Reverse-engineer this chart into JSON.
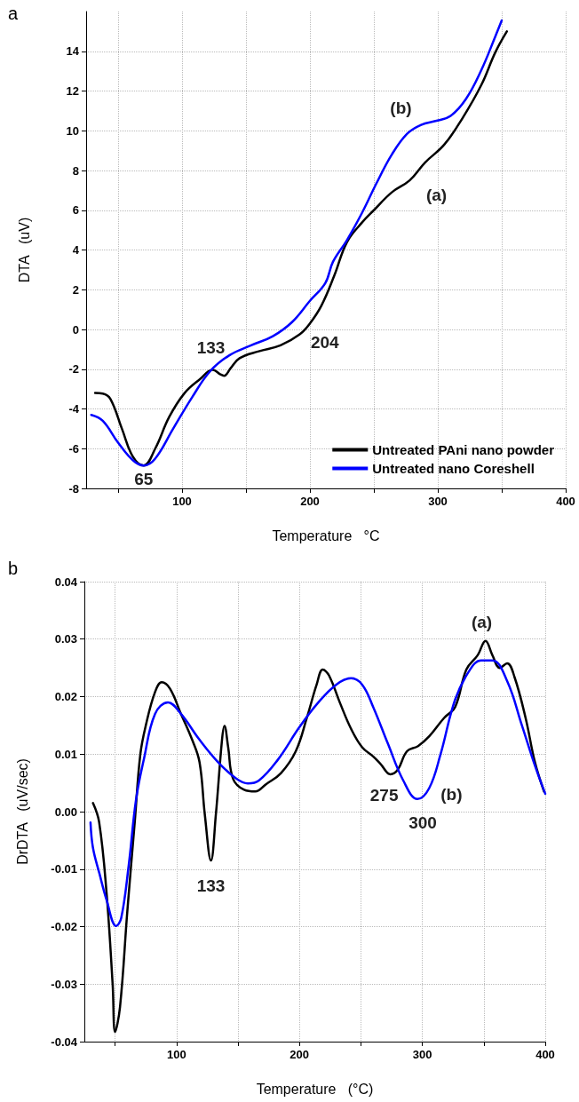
{
  "chart_data": [
    {
      "type": "line",
      "title": "a",
      "xlabel": "Temperature   °C",
      "ylabel": "DTA   (uV)",
      "xlim": [
        25,
        400
      ],
      "xticks": [
        {
          "value": 50,
          "label": null
        },
        100,
        {
          "value": 150,
          "label": null
        },
        200,
        {
          "value": 250,
          "label": null
        },
        300,
        {
          "value": 350,
          "label": null
        },
        400
      ],
      "ylim": [
        -8,
        16
      ],
      "yticks": [
        -8,
        -6,
        -4,
        -2,
        0,
        2,
        4,
        6,
        8,
        10,
        12,
        14
      ],
      "grid": true,
      "legend": "bottom right",
      "marker": "none",
      "line_style": "solid",
      "series": [
        {
          "name": "Untreated PAni nano powder",
          "color": "#000000",
          "x": [
            32,
            38,
            44,
            53,
            61.5,
            70,
            79,
            90,
            102,
            114,
            124,
            130,
            133,
            138,
            145,
            160,
            177,
            192,
            200,
            209,
            219,
            229,
            241,
            250,
            264,
            278,
            290,
            305,
            319,
            334,
            345,
            354
          ],
          "values": [
            -3.2,
            -3.23,
            -3.5,
            -5.0,
            -6.4,
            -6.85,
            -6.0,
            -4.4,
            -3.2,
            -2.5,
            -2.03,
            -2.26,
            -2.33,
            -1.95,
            -1.45,
            -1.1,
            -0.8,
            -0.25,
            0.3,
            1.2,
            2.7,
            4.4,
            5.4,
            6.0,
            6.9,
            7.5,
            8.4,
            9.3,
            10.6,
            12.3,
            13.95,
            15
          ]
        },
        {
          "name": "Untreated nano Coreshell",
          "color": "#0000ff",
          "x": [
            29,
            38,
            50,
            61.5,
            70,
            79,
            93,
            108,
            122,
            137,
            154,
            171,
            186,
            200,
            212,
            218,
            229,
            241,
            252,
            264,
            276,
            287,
            299,
            310,
            322,
            334,
            345,
            350
          ],
          "values": [
            -4.3,
            -4.6,
            -5.7,
            -6.58,
            -6.85,
            -6.5,
            -5.0,
            -3.4,
            -2.1,
            -1.3,
            -0.8,
            -0.34,
            0.37,
            1.44,
            2.33,
            3.4,
            4.5,
            5.9,
            7.35,
            8.8,
            9.85,
            10.3,
            10.5,
            10.75,
            11.6,
            13.05,
            14.75,
            15.55
          ]
        }
      ],
      "annotations": [
        {
          "text": "133",
          "x": 124,
          "y": -2.03
        },
        {
          "text": "204",
          "x": 204,
          "y": 0.7
        },
        {
          "text": "65",
          "x": 70,
          "y": -6.85
        },
        {
          "text": "(a)",
          "x": 283,
          "y": 7.9
        },
        {
          "text": "(b)",
          "x": 276,
          "y": 9.85
        }
      ]
    },
    {
      "type": "line",
      "title": "b",
      "xlabel": "Temperature   (°C)",
      "ylabel": "DrDTA   (uV/sec)",
      "xlim": [
        25,
        400
      ],
      "xticks": [
        {
          "value": 50,
          "label": null
        },
        100,
        {
          "value": 150,
          "label": null
        },
        200,
        {
          "value": 250,
          "label": null
        },
        300,
        {
          "value": 350,
          "label": null
        },
        400
      ],
      "ylim": [
        -0.04,
        0.04
      ],
      "yticks": [
        -0.04,
        -0.03,
        -0.02,
        -0.01,
        {
          "value": 0,
          "label": "0.00"
        },
        0.01,
        0.02,
        0.03,
        0.04
      ],
      "grid": true,
      "legend": false,
      "marker": "none",
      "line_style": "solid",
      "series": [
        {
          "color": "#000000",
          "x": [
            32,
            37,
            43,
            48,
            50,
            54,
            60,
            66,
            70.5,
            75,
            82.5,
            88,
            94.6,
            103.6,
            112.7,
            118.7,
            123,
            128,
            132,
            137,
            139,
            142,
            146,
            155,
            164,
            173,
            185,
            197,
            206,
            214,
            219,
            224,
            233,
            242,
            251,
            260,
            266,
            274,
            280,
            287.5,
            296.5,
            305.6,
            317.7,
            326.7,
            335.8,
            345,
            351.4,
            357,
            363,
            369,
            375,
            384,
            391.6,
            399
          ],
          "values": [
            0.0015,
            -0.0018,
            -0.014,
            -0.03,
            -0.0383,
            -0.034,
            -0.0172,
            -0.0018,
            0.0099,
            0.015,
            0.0208,
            0.0225,
            0.0214,
            0.017,
            0.0125,
            0.0086,
            -0.0005,
            -0.0085,
            -0.0005,
            0.0125,
            0.0149,
            0.0112,
            0.0057,
            0.0038,
            0.0035,
            0.0048,
            0.0067,
            0.0105,
            0.0163,
            0.0221,
            0.0247,
            0.0237,
            0.0189,
            0.0144,
            0.0112,
            0.0096,
            0.0083,
            0.0065,
            0.0073,
            0.0105,
            0.0114,
            0.0131,
            0.0163,
            0.0182,
            0.0247,
            0.0272,
            0.0297,
            0.0272,
            0.025,
            0.0258,
            0.0234,
            0.0163,
            0.0086,
            0.0035
          ]
        },
        {
          "color": "#0000ff",
          "x": [
            30,
            32,
            37.3,
            43,
            50.9,
            55,
            61,
            67,
            73.5,
            82.5,
            93,
            103.6,
            118.7,
            133.8,
            148.8,
            158,
            167,
            182,
            200,
            215,
            230,
            242,
            251,
            260,
            272,
            284.5,
            296,
            305.6,
            314.7,
            326.7,
            338.8,
            347.8,
            357,
            369,
            381,
            391.6,
            400
          ],
          "values": [
            -0.0019,
            -0.0063,
            -0.0108,
            -0.0153,
            -0.0199,
            -0.0185,
            -0.0095,
            0.002,
            0.0092,
            0.017,
            0.019,
            0.017,
            0.0125,
            0.0086,
            0.0057,
            0.0049,
            0.0054,
            0.0089,
            0.0147,
            0.0189,
            0.0221,
            0.0232,
            0.0221,
            0.0182,
            0.0118,
            0.0054,
            0.0022,
            0.0041,
            0.0099,
            0.0195,
            0.0247,
            0.0263,
            0.0263,
            0.0227,
            0.015,
            0.008,
            0.0031
          ]
        }
      ],
      "annotations": [
        {
          "text": "133",
          "x": 128,
          "y": -0.0085
        },
        {
          "text": "275",
          "x": 274,
          "y": 0.0065
        },
        {
          "text": "300",
          "x": 296,
          "y": 0.0022
        },
        {
          "text": "(a)",
          "x": 352,
          "y": 0.0297
        },
        {
          "text": "(b)",
          "x": 305.6,
          "y": 0.0041
        }
      ]
    }
  ]
}
